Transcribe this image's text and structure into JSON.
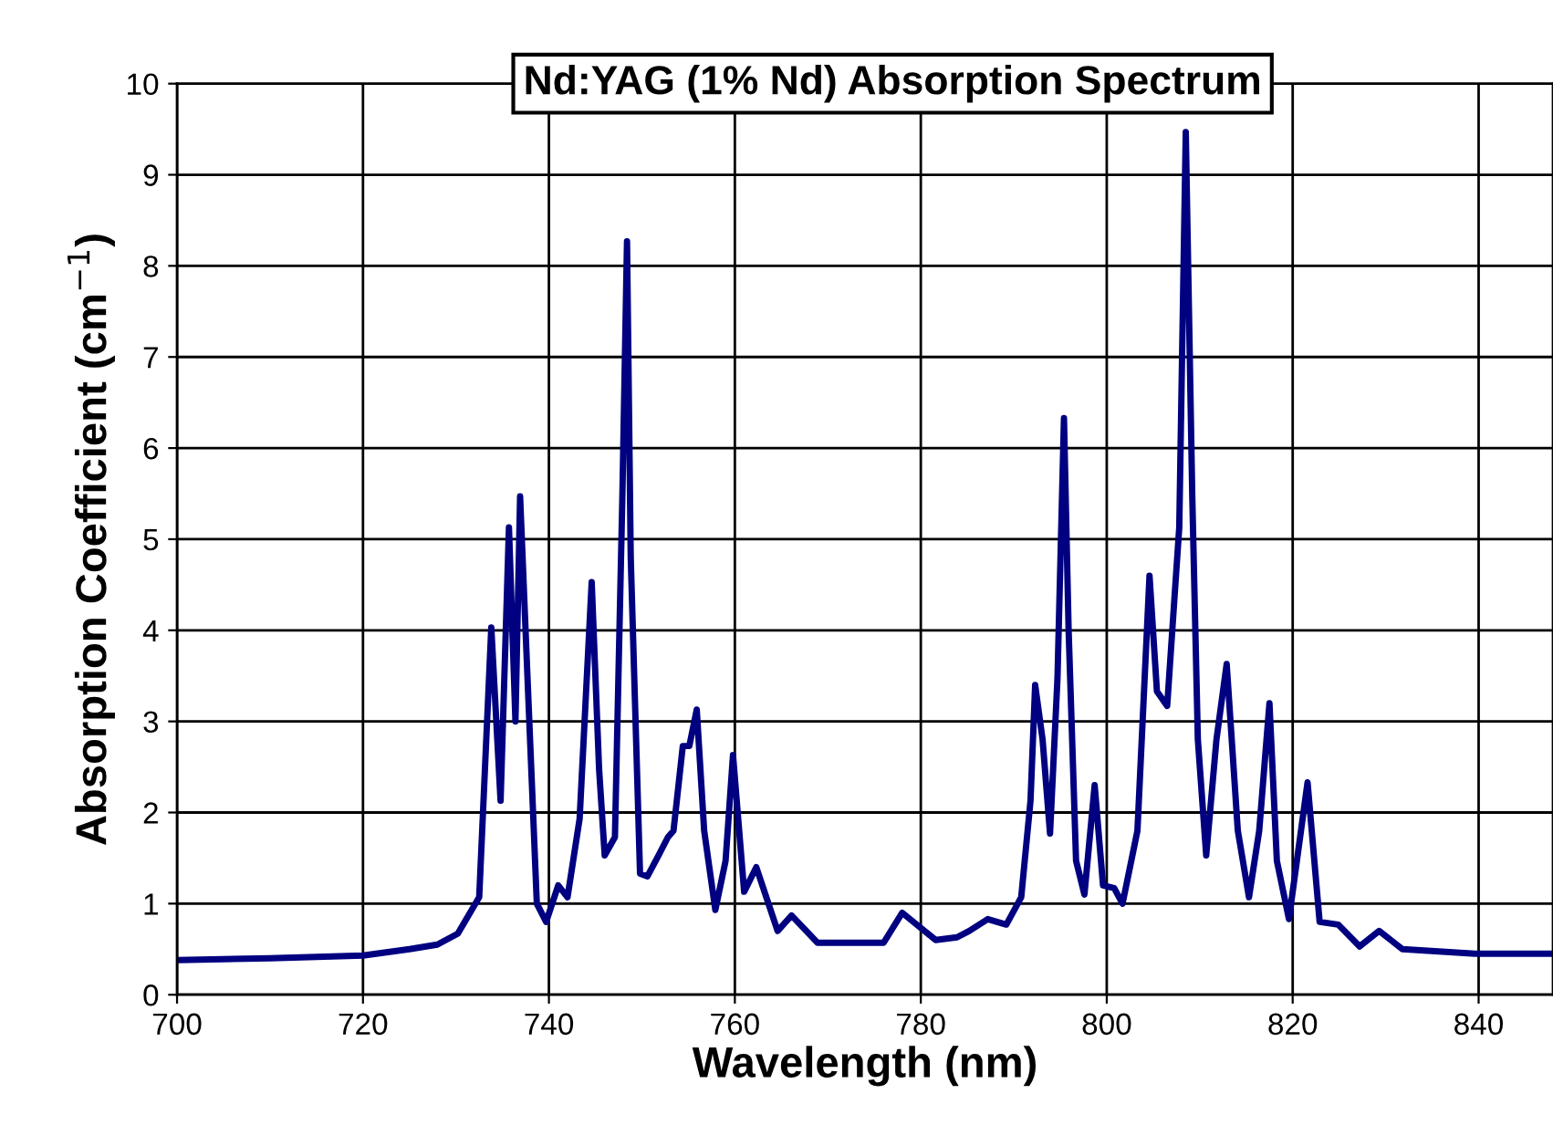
{
  "chart_data": {
    "type": "line",
    "title": "Nd:YAG (1% Nd) Absorption Spectrum",
    "xlabel": "Wavelength (nm)",
    "ylabel": "Absorption Coefficient (cm$^{−1}$)",
    "xlim": [
      700,
      848
    ],
    "ylim": [
      0,
      10
    ],
    "xticks": [
      700,
      720,
      740,
      760,
      780,
      800,
      820,
      840
    ],
    "yticks": [
      0,
      1,
      2,
      3,
      4,
      5,
      6,
      7,
      8,
      9,
      10
    ],
    "grid": true,
    "line_style": "solid",
    "marker": "none",
    "series": [
      {
        "color": "#000080",
        "x": [
          700,
          710,
          720,
          725,
          728,
          730.2,
          732.5,
          733.8,
          734.8,
          735.7,
          736.4,
          736.9,
          737.7,
          738.7,
          739.7,
          741.0,
          742.0,
          743.3,
          744.6,
          745.4,
          746.0,
          747.1,
          747.9,
          748.4,
          748.8,
          749.8,
          750.6,
          751.8,
          752.8,
          753.4,
          754.4,
          755.1,
          755.9,
          756.7,
          757.9,
          759.0,
          759.8,
          761.0,
          762.3,
          764.6,
          766.1,
          768.9,
          776.0,
          778.0,
          781.6,
          783.9,
          785.2,
          787.2,
          789.2,
          790.8,
          791.8,
          792.3,
          793.1,
          793.9,
          794.7,
          795.4,
          795.9,
          796.7,
          797.6,
          798.7,
          799.6,
          800.8,
          801.7,
          803.3,
          804.6,
          805.4,
          806.5,
          807.4,
          807.8,
          808.5,
          809.2,
          809.8,
          810.7,
          811.8,
          812.9,
          814.1,
          815.3,
          816.4,
          817.5,
          818.3,
          819.6,
          821.6,
          822.9,
          824.9,
          827.2,
          829.3,
          831.8,
          839.6,
          848
        ],
        "values": [
          0.38,
          0.4,
          0.43,
          0.5,
          0.55,
          0.67,
          1.07,
          4.03,
          2.13,
          5.13,
          3.0,
          5.47,
          3.47,
          1.0,
          0.8,
          1.2,
          1.07,
          1.93,
          4.53,
          2.47,
          1.53,
          1.73,
          5.47,
          8.27,
          4.8,
          1.33,
          1.3,
          1.53,
          1.73,
          1.8,
          2.73,
          2.73,
          3.13,
          1.8,
          0.93,
          1.47,
          2.63,
          1.13,
          1.4,
          0.7,
          0.87,
          0.57,
          0.57,
          0.9,
          0.6,
          0.63,
          0.7,
          0.83,
          0.77,
          1.07,
          2.13,
          3.4,
          2.8,
          1.77,
          3.47,
          6.33,
          4.0,
          1.47,
          1.1,
          2.3,
          1.2,
          1.17,
          1.0,
          1.8,
          4.6,
          3.33,
          3.17,
          4.53,
          5.13,
          9.47,
          5.47,
          2.8,
          1.53,
          2.8,
          3.63,
          1.8,
          1.07,
          1.8,
          3.2,
          1.47,
          0.83,
          2.33,
          0.8,
          0.77,
          0.53,
          0.7,
          0.5,
          0.45,
          0.45
        ]
      }
    ]
  }
}
